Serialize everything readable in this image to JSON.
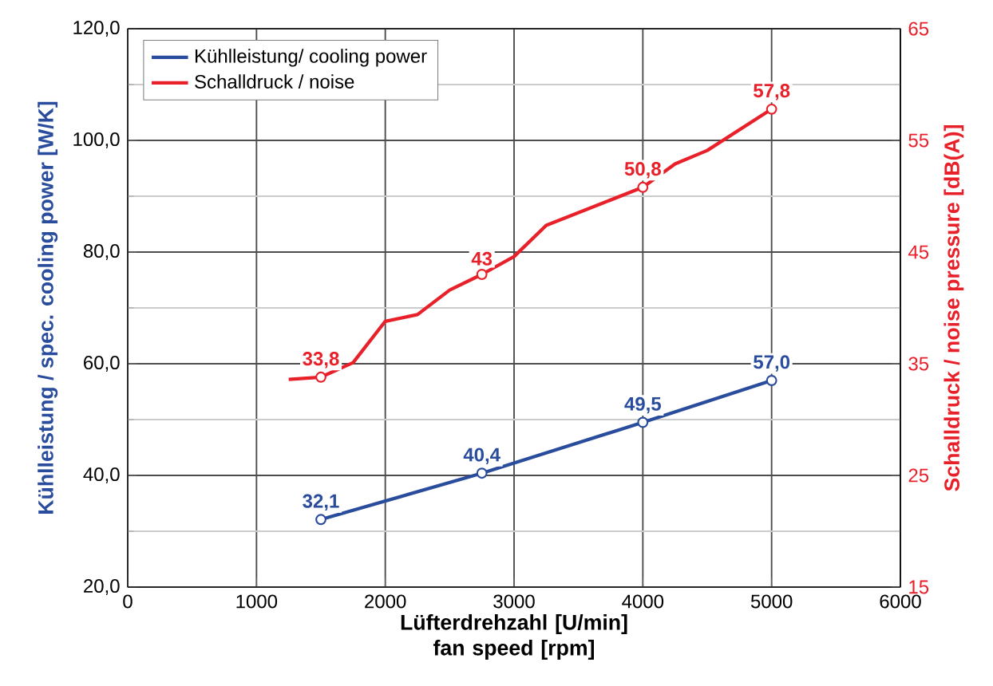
{
  "chart_data": {
    "type": "line",
    "xlabel": "Lüfterdrehzahl  [U/min] fan speed [rpm]",
    "ylabel": "Kühlleistung / spec. cooling power [W/K]",
    "y2label": "Schalldruck / noise pressure [dB(A)]",
    "xlim": [
      0,
      6000
    ],
    "xticks": [
      0,
      1000,
      2000,
      3000,
      4000,
      5000,
      6000
    ],
    "ylim": [
      20,
      120
    ],
    "yticks": [
      {
        "value": 20,
        "label": "20,0"
      },
      {
        "value": 40,
        "label": "40,0"
      },
      {
        "value": 60,
        "label": "60,0"
      },
      {
        "value": 80,
        "label": "80,0"
      },
      {
        "value": 100,
        "label": "100,0"
      },
      {
        "value": 120,
        "label": "120,0"
      }
    ],
    "y2lim": [
      15,
      65
    ],
    "y2ticks": [
      15,
      25,
      35,
      45,
      55,
      65
    ],
    "grid": true,
    "legend": "top left",
    "line_style": "solid",
    "series": [
      {
        "name": "Kühlleistung/ cooling power",
        "color": "#2a4c9c",
        "marker": "circle",
        "x": [
          1500,
          2750,
          4000,
          5000
        ],
        "values": [
          32.1,
          40.4,
          49.5,
          57.0
        ],
        "value_labels": [
          "32,1",
          "40,4",
          "49,5",
          "57,0"
        ]
      },
      {
        "name": "Schalldruck / noise",
        "color": "#e8202a",
        "axis": "y2",
        "marker": "none",
        "x": [
          1250,
          1500,
          1750,
          2000,
          2250,
          2500,
          2750,
          3000,
          3250,
          4000,
          4250,
          4500,
          5000
        ],
        "values": [
          33.6,
          33.8,
          35.1,
          38.8,
          39.4,
          41.6,
          43,
          44.6,
          47.4,
          50.8,
          52.9,
          54.1,
          57.8
        ]
      },
      {
        "type": "scatter",
        "color": "#e8202a",
        "axis": "y2",
        "marker": "circle",
        "x": [
          1500,
          2750,
          4000,
          5000
        ],
        "values": [
          33.8,
          43,
          50.8,
          57.8
        ],
        "value_labels": [
          "33,8",
          "43",
          "50,8",
          "57,8"
        ]
      }
    ]
  }
}
